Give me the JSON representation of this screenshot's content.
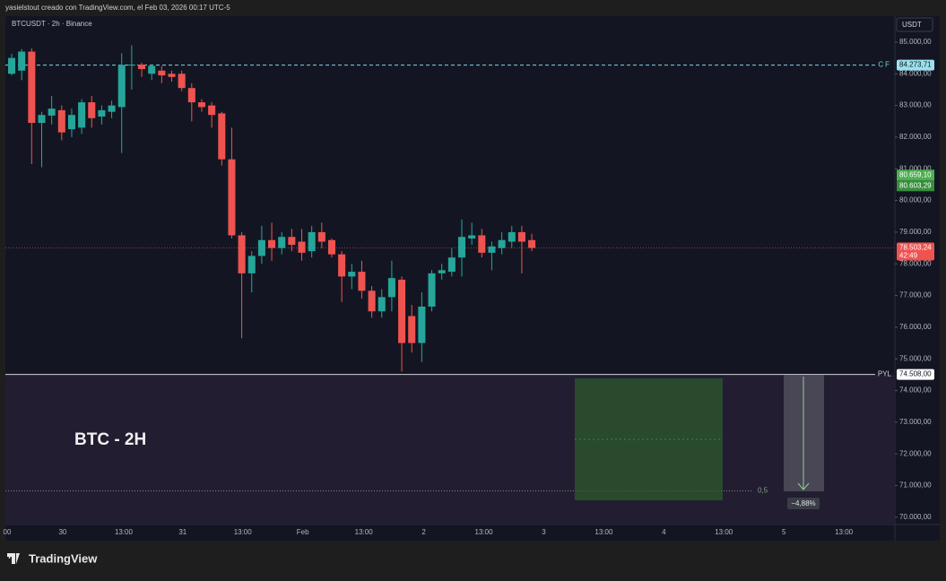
{
  "caption": "yasielstout creado con TradingView.com, el Feb 03, 2026 00:17 UTC-5",
  "brand": "TradingView",
  "currency_button": "USDT",
  "chart_data": {
    "type": "candlestick",
    "title": "BTCUSDT · 2h · Binance",
    "annotation": "BTC - 2H",
    "up_color": "#26a69a",
    "down_color": "#ef5350",
    "open": [
      84000,
      84100,
      84700,
      82450,
      82680,
      82850,
      82250,
      82300,
      83100,
      82650,
      82800,
      82950,
      84270,
      84290,
      84000,
      84100,
      84000,
      84000,
      83550,
      83100,
      83000,
      82750,
      81300,
      78900,
      77700,
      78250,
      78750,
      78500,
      78850,
      78700,
      78400,
      79000,
      78750,
      78300,
      77600,
      77750,
      77150,
      76500,
      76950,
      77500,
      76350,
      75500,
      76650,
      77700,
      77750,
      78200,
      78800,
      78900,
      78350,
      78500,
      78700,
      79000,
      78750
    ],
    "high": [
      84630,
      84780,
      84800,
      82800,
      83300,
      83000,
      82900,
      83200,
      83300,
      83000,
      83150,
      84650,
      84900,
      84350,
      84300,
      84250,
      84100,
      84100,
      83700,
      83200,
      83100,
      82800,
      82300,
      79000,
      78400,
      79200,
      79300,
      79000,
      79100,
      79100,
      79200,
      79300,
      78800,
      78400,
      78000,
      78100,
      77300,
      77200,
      78100,
      77600,
      76700,
      77100,
      77800,
      78000,
      78500,
      79400,
      79300,
      79100,
      78700,
      79000,
      79200,
      79200,
      78950
    ],
    "low": [
      83950,
      83800,
      81150,
      81050,
      82400,
      81900,
      82000,
      82100,
      82300,
      82400,
      82600,
      81500,
      83500,
      83900,
      83800,
      83700,
      83750,
      83450,
      82500,
      82800,
      82300,
      81100,
      78800,
      75650,
      77100,
      78000,
      78100,
      78300,
      78400,
      78100,
      78200,
      78500,
      78200,
      76800,
      77200,
      76900,
      76300,
      76300,
      76500,
      74600,
      75200,
      74900,
      76500,
      77500,
      77600,
      77600,
      78600,
      78200,
      77800,
      78300,
      78500,
      77700,
      78400
    ],
    "close": [
      84500,
      84700,
      82450,
      82700,
      82900,
      82150,
      82700,
      83100,
      82600,
      82850,
      83000,
      84280,
      84290,
      84150,
      84250,
      83950,
      83900,
      83550,
      83100,
      82950,
      82700,
      81300,
      78900,
      77700,
      78250,
      78750,
      78500,
      78850,
      78600,
      78350,
      79000,
      78700,
      78300,
      77600,
      77750,
      77150,
      76500,
      76950,
      77550,
      75500,
      75500,
      76650,
      77700,
      77800,
      78200,
      78850,
      78900,
      78350,
      78550,
      78750,
      79000,
      78700,
      78503.24
    ],
    "ylim": [
      69770,
      85820
    ],
    "yticks": [
      {
        "value": 85000,
        "label": "85.000,00"
      },
      {
        "value": 84000,
        "label": "84.000,00"
      },
      {
        "value": 83000,
        "label": "83.000,00"
      },
      {
        "value": 82000,
        "label": "82.000,00"
      },
      {
        "value": 81000,
        "label": "81.000,00"
      },
      {
        "value": 80000,
        "label": "80.000,00"
      },
      {
        "value": 79000,
        "label": "79.000,00"
      },
      {
        "value": 78000,
        "label": "78.000,00"
      },
      {
        "value": 77000,
        "label": "77.000,00"
      },
      {
        "value": 76000,
        "label": "76.000,00"
      },
      {
        "value": 75000,
        "label": "75.000,00"
      },
      {
        "value": 74000,
        "label": "74.000,00"
      },
      {
        "value": 73000,
        "label": "73.000,00"
      },
      {
        "value": 72000,
        "label": "72.000,00"
      },
      {
        "value": 71000,
        "label": "71.000,00"
      },
      {
        "value": 70000,
        "label": "70.000,00"
      }
    ],
    "xlim": [
      -0.63,
      88.3
    ],
    "xticks": [
      {
        "value": -0.45,
        "label": "00"
      },
      {
        "value": 5.1,
        "label": "30"
      },
      {
        "value": 11.2,
        "label": "13:00"
      },
      {
        "value": 17.1,
        "label": "31"
      },
      {
        "value": 23.1,
        "label": "13:00"
      },
      {
        "value": 29.1,
        "label": "Feb"
      },
      {
        "value": 35.2,
        "label": "13:00"
      },
      {
        "value": 41.2,
        "label": "2"
      },
      {
        "value": 47.2,
        "label": "13:00"
      },
      {
        "value": 53.2,
        "label": "3"
      },
      {
        "value": 59.2,
        "label": "13:00"
      },
      {
        "value": 65.2,
        "label": "4"
      },
      {
        "value": 71.2,
        "label": "13:00"
      },
      {
        "value": 77.2,
        "label": "5"
      },
      {
        "value": 83.2,
        "label": "13:00"
      }
    ],
    "levels": [
      {
        "name": "CF",
        "value": 84273.71,
        "label": "84.273,71",
        "color": "#7fd3e6",
        "style": "dashed"
      },
      {
        "name": "PYL",
        "value": 74508,
        "label": "74.508,00",
        "color": "#d1d4dc",
        "style": "solid"
      }
    ],
    "price_tags": [
      {
        "value": 80659.1,
        "label": "80.659,10",
        "color": "#4caf50"
      },
      {
        "value": 80603.29,
        "label": "80.603,29",
        "color": "#388e3c"
      }
    ],
    "last_price": {
      "value": 78503.24,
      "label": "78.503,24",
      "countdown": "42:49",
      "color": "#ef5350"
    },
    "fib_level": {
      "value": 70830,
      "label": "0,5"
    },
    "change_label": "−4,88%"
  }
}
